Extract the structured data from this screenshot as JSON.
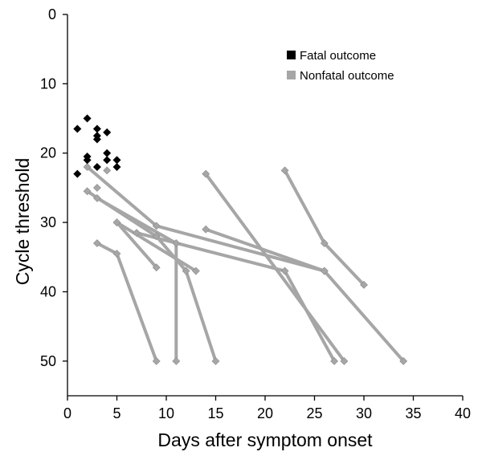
{
  "chart_data": {
    "type": "scatter",
    "title": "",
    "xlabel": "Days after symptom onset",
    "ylabel": "Cycle threshold",
    "xlim": [
      0,
      40
    ],
    "ylim": [
      0,
      55
    ],
    "y_inverted": true,
    "x_ticks": [
      "0",
      "5",
      "10",
      "15",
      "20",
      "25",
      "30",
      "35",
      "40"
    ],
    "x_tick_values": [
      0,
      5,
      10,
      15,
      20,
      25,
      30,
      35,
      40
    ],
    "y_ticks": [
      "0",
      "10",
      "20",
      "30",
      "40",
      "50"
    ],
    "y_tick_values": [
      0,
      10,
      20,
      30,
      40,
      50
    ],
    "grid": false,
    "legend": {
      "placement": "top-right",
      "entries": [
        {
          "label": "Fatal outcome",
          "color": "#000000",
          "marker": "diamond"
        },
        {
          "label": "Nonfatal outcome",
          "color": "#a6a6a6",
          "marker": "line-diamond"
        }
      ]
    },
    "series": [
      {
        "name": "Fatal outcome",
        "color": "#000000",
        "points": [
          [
            1,
            16.5
          ],
          [
            2,
            15
          ],
          [
            3,
            16.5
          ],
          [
            4,
            17
          ],
          [
            3,
            17.5
          ],
          [
            3,
            18
          ],
          [
            2,
            20.5
          ],
          [
            4,
            20
          ],
          [
            2,
            21
          ],
          [
            4,
            21
          ],
          [
            5,
            21
          ],
          [
            3,
            22
          ],
          [
            5,
            22
          ],
          [
            1,
            23
          ]
        ]
      },
      {
        "name": "Nonfatal outcome",
        "color": "#a6a6a6",
        "isolated_points": [
          [
            4,
            22.5
          ],
          [
            3,
            25
          ]
        ],
        "patients": [
          [
            [
              2,
              22
            ],
            [
              9,
              30.5
            ],
            [
              26,
              37
            ],
            [
              34,
              50
            ]
          ],
          [
            [
              2,
              25.5
            ],
            [
              9,
              32
            ],
            [
              12,
              37
            ],
            [
              15,
              50
            ]
          ],
          [
            [
              3,
              26.5
            ],
            [
              11,
              33
            ],
            [
              11,
              50
            ]
          ],
          [
            [
              5,
              30
            ],
            [
              13,
              37
            ]
          ],
          [
            [
              7,
              31.5
            ],
            [
              22,
              37
            ],
            [
              27,
              50
            ]
          ],
          [
            [
              3,
              33
            ],
            [
              5,
              34.5
            ],
            [
              9,
              50
            ]
          ],
          [
            [
              5,
              30
            ],
            [
              9,
              36.5
            ]
          ],
          [
            [
              14,
              23
            ],
            [
              28,
              50
            ]
          ],
          [
            [
              14,
              31
            ],
            [
              26,
              37
            ]
          ],
          [
            [
              22,
              22.5
            ],
            [
              26,
              33
            ],
            [
              30,
              39
            ]
          ]
        ]
      }
    ]
  }
}
